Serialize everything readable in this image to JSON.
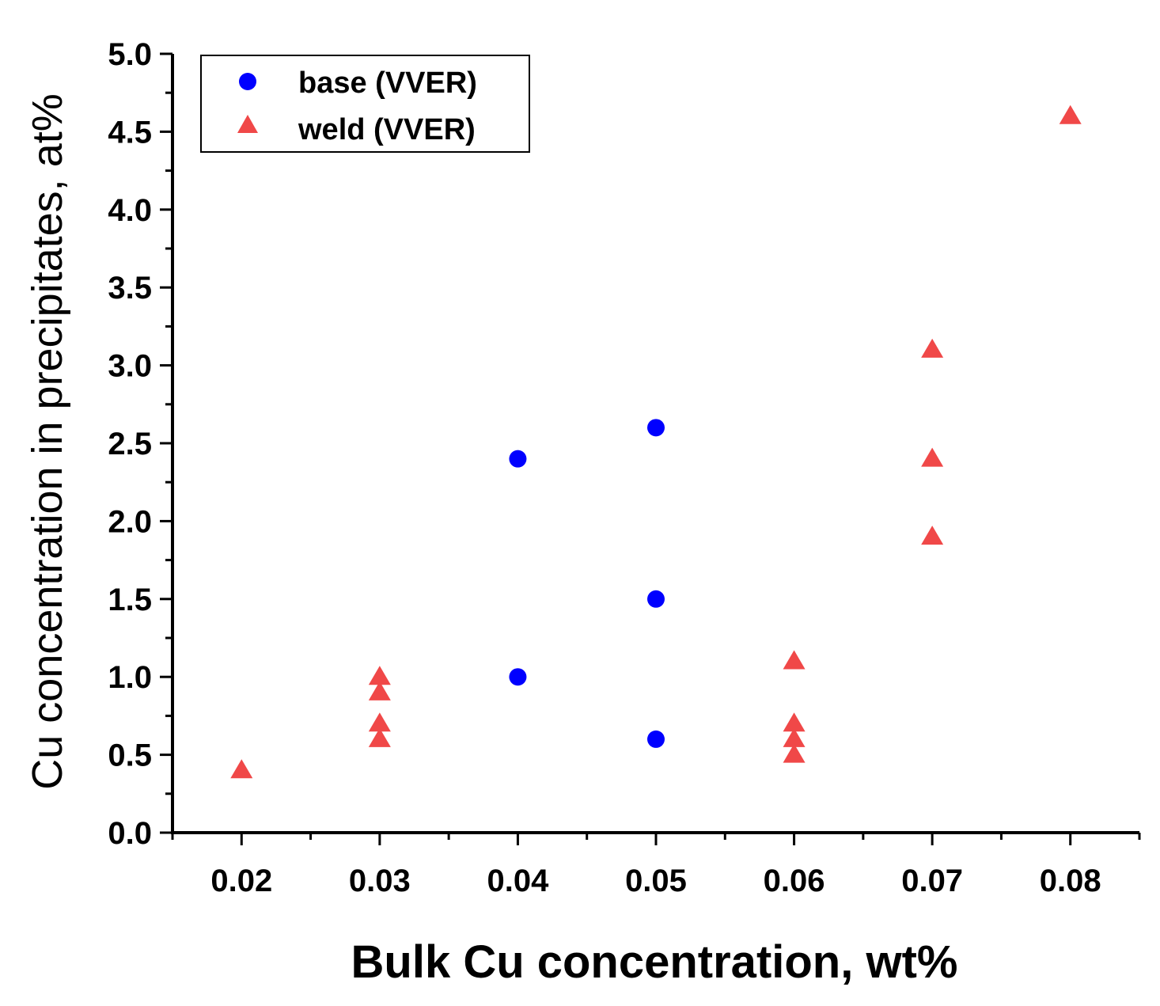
{
  "chart_data": {
    "type": "scatter",
    "xlabel": "Bulk Cu concentration, wt%",
    "ylabel": "Cu concentration in precipitates, at%",
    "xlim": [
      0.015,
      0.085
    ],
    "ylim": [
      0.0,
      5.0
    ],
    "x_ticks": [
      "0.02",
      "0.03",
      "0.04",
      "0.05",
      "0.06",
      "0.07",
      "0.08"
    ],
    "y_ticks": [
      "0.0",
      "0.5",
      "1.0",
      "1.5",
      "2.0",
      "2.5",
      "3.0",
      "3.5",
      "4.0",
      "4.5",
      "5.0"
    ],
    "grid": false,
    "legend_position": "top-left",
    "series": [
      {
        "name": "base (VVER)",
        "marker": "circle",
        "color": "#0000ff",
        "points": [
          {
            "x": 0.04,
            "y": 2.4
          },
          {
            "x": 0.04,
            "y": 1.0
          },
          {
            "x": 0.05,
            "y": 2.6
          },
          {
            "x": 0.05,
            "y": 1.5
          },
          {
            "x": 0.05,
            "y": 0.6
          }
        ]
      },
      {
        "name": "weld (VVER)",
        "marker": "triangle",
        "color": "#f04848",
        "points": [
          {
            "x": 0.02,
            "y": 0.4
          },
          {
            "x": 0.03,
            "y": 1.0
          },
          {
            "x": 0.03,
            "y": 0.9
          },
          {
            "x": 0.03,
            "y": 0.7
          },
          {
            "x": 0.03,
            "y": 0.6
          },
          {
            "x": 0.06,
            "y": 1.1
          },
          {
            "x": 0.06,
            "y": 0.7
          },
          {
            "x": 0.06,
            "y": 0.6
          },
          {
            "x": 0.06,
            "y": 0.5
          },
          {
            "x": 0.07,
            "y": 3.1
          },
          {
            "x": 0.07,
            "y": 2.4
          },
          {
            "x": 0.07,
            "y": 1.9
          },
          {
            "x": 0.08,
            "y": 4.6
          }
        ]
      }
    ]
  }
}
